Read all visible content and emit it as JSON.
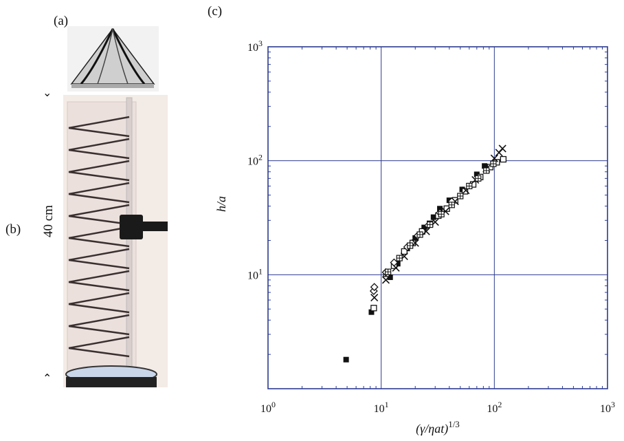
{
  "panels": {
    "a": "(a)",
    "b": "(b)",
    "c": "(c)"
  },
  "scale_label": "40 cm",
  "chart_data": {
    "type": "scatter",
    "x_scale": "log",
    "y_scale": "log",
    "xlim": [
      1,
      1000
    ],
    "ylim": [
      1,
      1000
    ],
    "xlabel": "(γ/ηat)^1/3",
    "ylabel": "h/a",
    "x_ticks": [
      "10^0",
      "10^1",
      "10^2",
      "10^3"
    ],
    "y_ticks": [
      "10^1",
      "10^2",
      "10^3"
    ],
    "grid": true,
    "colors": {
      "frame": "#2b3a8f",
      "grid": "#2b3a8f",
      "marker": "#111111"
    },
    "series": [
      {
        "marker": "filled-square",
        "points": [
          [
            4.9,
            1.8
          ],
          [
            8.2,
            4.7
          ],
          [
            12,
            9.5
          ],
          [
            14,
            12.5
          ],
          [
            17,
            17
          ],
          [
            20,
            21
          ],
          [
            24,
            26
          ],
          [
            29,
            32
          ],
          [
            33,
            38
          ],
          [
            40,
            45
          ],
          [
            52,
            56
          ],
          [
            70,
            76
          ],
          [
            82,
            90
          ]
        ]
      },
      {
        "marker": "open-square",
        "points": [
          [
            8.6,
            5.1
          ],
          [
            11.1,
            10.2
          ],
          [
            13,
            12
          ],
          [
            16,
            16
          ],
          [
            19,
            19
          ],
          [
            23,
            24
          ],
          [
            27,
            28
          ],
          [
            32,
            33
          ],
          [
            38,
            38
          ],
          [
            45,
            45
          ],
          [
            55,
            54
          ],
          [
            65,
            62
          ],
          [
            75,
            72
          ],
          [
            92,
            88
          ],
          [
            105,
            97
          ],
          [
            120,
            103
          ]
        ]
      },
      {
        "marker": "cross",
        "points": [
          [
            8.7,
            6.3
          ],
          [
            11,
            9
          ],
          [
            13.5,
            11.5
          ],
          [
            16,
            14.5
          ],
          [
            20,
            19
          ],
          [
            25,
            24
          ],
          [
            30,
            29
          ],
          [
            37,
            36
          ],
          [
            45,
            44
          ],
          [
            56,
            55
          ],
          [
            68,
            68
          ],
          [
            85,
            85
          ],
          [
            100,
            105
          ],
          [
            110,
            118
          ],
          [
            118,
            128
          ]
        ]
      },
      {
        "marker": "diamond",
        "points": [
          [
            8.6,
            7.2
          ],
          [
            8.7,
            7.8
          ],
          [
            11,
            10.5
          ],
          [
            13,
            12.8
          ],
          [
            17,
            17.5
          ],
          [
            21,
            22
          ],
          [
            26,
            27
          ],
          [
            33,
            35
          ],
          [
            42,
            44
          ]
        ]
      },
      {
        "marker": "crossed-square",
        "points": [
          [
            11.5,
            10.6
          ],
          [
            14.5,
            14
          ],
          [
            18,
            18
          ],
          [
            22,
            22.5
          ],
          [
            27,
            27.5
          ],
          [
            34,
            34
          ],
          [
            42,
            41
          ],
          [
            50,
            49
          ],
          [
            60,
            60
          ],
          [
            72,
            70
          ],
          [
            85,
            82
          ],
          [
            98,
            94
          ]
        ]
      }
    ]
  }
}
